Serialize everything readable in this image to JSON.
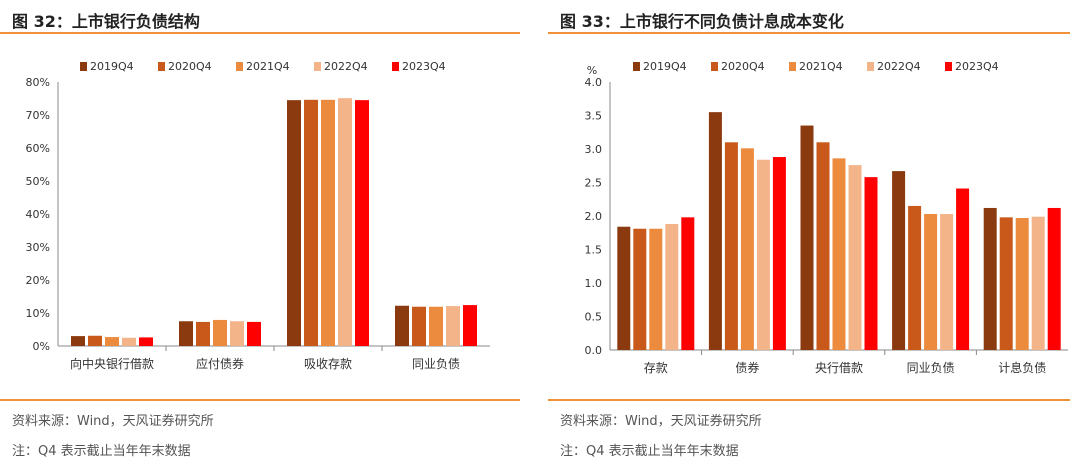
{
  "left": {
    "title": "图 32：上市银行负债结构",
    "source": "资料来源：Wind，天风证券研究所",
    "note": "注：Q4 表示截止当年年末数据"
  },
  "right": {
    "title": "图 33：上市银行不同负债计息成本变化",
    "source": "资料来源：Wind，天风证券研究所",
    "note": "注：Q4 表示截止当年年末数据"
  },
  "colors": [
    "#8b3a0f",
    "#c9591a",
    "#ec8a3d",
    "#f4b48a",
    "#ff0000"
  ],
  "chart_data": [
    {
      "type": "bar",
      "title": "图 32：上市银行负债结构",
      "categories": [
        "向中央银行借款",
        "应付债券",
        "吸收存款",
        "同业负债"
      ],
      "series": [
        {
          "name": "2019Q4",
          "values": [
            3.0,
            7.5,
            74.5,
            12.2
          ]
        },
        {
          "name": "2020Q4",
          "values": [
            3.1,
            7.3,
            74.6,
            11.9
          ]
        },
        {
          "name": "2021Q4",
          "values": [
            2.7,
            7.9,
            74.6,
            11.9
          ]
        },
        {
          "name": "2022Q4",
          "values": [
            2.5,
            7.5,
            75.1,
            12.1
          ]
        },
        {
          "name": "2023Q4",
          "values": [
            2.6,
            7.3,
            74.5,
            12.4
          ]
        }
      ],
      "ylim": [
        0,
        80
      ],
      "yticks": [
        "0%",
        "10%",
        "20%",
        "30%",
        "40%",
        "50%",
        "60%",
        "70%",
        "80%"
      ],
      "ylabel": "",
      "xlabel": "",
      "legend": "top",
      "grid": false
    },
    {
      "type": "bar",
      "title": "图 33：上市银行不同负债计息成本变化",
      "categories": [
        "存款",
        "债券",
        "央行借款",
        "同业负债",
        "计息负债"
      ],
      "series": [
        {
          "name": "2019Q4",
          "values": [
            1.84,
            3.55,
            3.35,
            2.67,
            2.12
          ]
        },
        {
          "name": "2020Q4",
          "values": [
            1.81,
            3.1,
            3.1,
            2.15,
            1.98
          ]
        },
        {
          "name": "2021Q4",
          "values": [
            1.81,
            3.01,
            2.86,
            2.03,
            1.97
          ]
        },
        {
          "name": "2022Q4",
          "values": [
            1.88,
            2.84,
            2.76,
            2.03,
            1.99
          ]
        },
        {
          "name": "2023Q4",
          "values": [
            1.98,
            2.88,
            2.58,
            2.41,
            2.12
          ]
        }
      ],
      "ylim": [
        0,
        4
      ],
      "yticks": [
        "0.0",
        "0.5",
        "1.0",
        "1.5",
        "2.0",
        "2.5",
        "3.0",
        "3.5",
        "4.0"
      ],
      "ylabel": "%",
      "xlabel": "",
      "legend": "top",
      "grid": false
    }
  ]
}
